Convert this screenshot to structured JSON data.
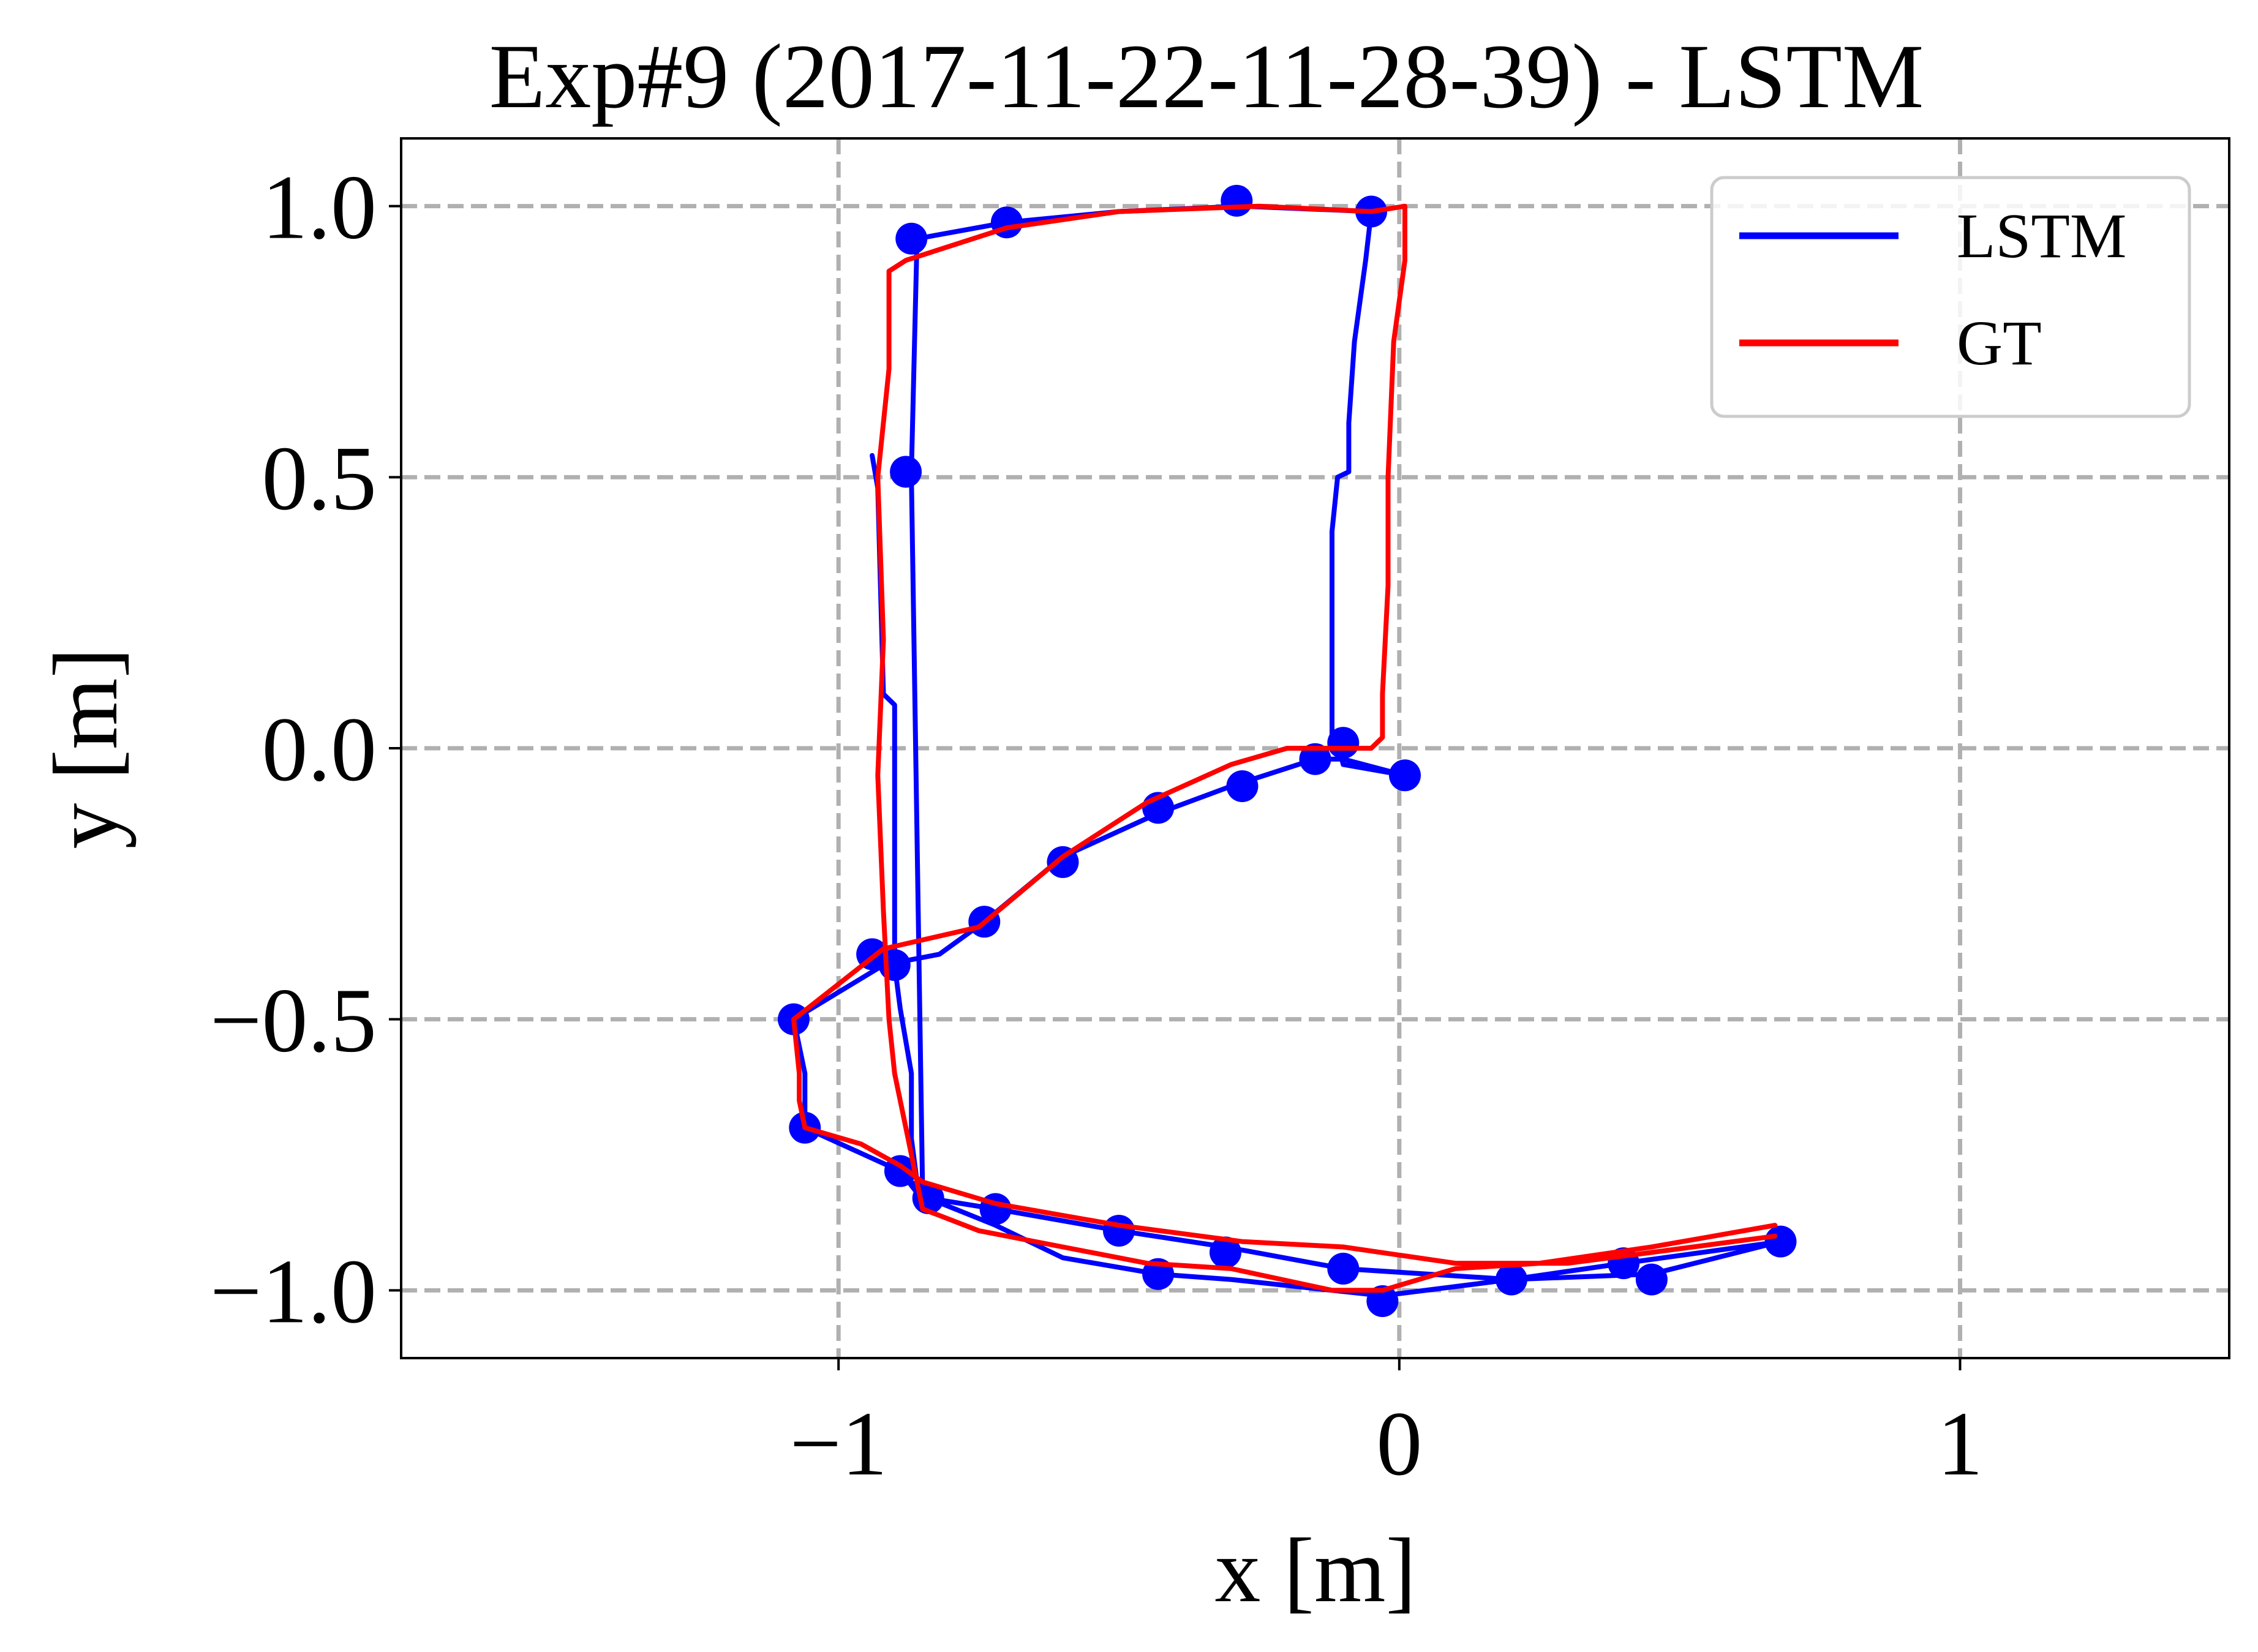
{
  "chart_data": {
    "type": "line",
    "title": "Exp#9 (2017-11-22-11-28-39) - LSTM",
    "xlabel": "x [m]",
    "ylabel": "y [m]",
    "xlim": [
      -1.78,
      1.48
    ],
    "ylim": [
      -1.125,
      1.125
    ],
    "x_ticks": [
      {
        "value": -1,
        "label": "−1"
      },
      {
        "value": 0,
        "label": "0"
      },
      {
        "value": 1,
        "label": "1"
      }
    ],
    "y_ticks": [
      {
        "value": 1.0,
        "label": "1.0"
      },
      {
        "value": 0.5,
        "label": "0.5"
      },
      {
        "value": 0.0,
        "label": "0.0"
      },
      {
        "value": -0.5,
        "label": "−0.5"
      },
      {
        "value": -1.0,
        "label": "−1.0"
      }
    ],
    "grid": true,
    "legend_position": "top-right",
    "series": [
      {
        "name": "LSTM",
        "color": "#0000ff",
        "x": [
          -0.94,
          -0.93,
          -0.92,
          -0.9,
          -0.9,
          -0.9,
          -0.9,
          -0.89,
          -0.87,
          -0.87,
          -0.86,
          -0.85,
          -0.87,
          -0.87,
          -0.86,
          -0.7,
          -0.5,
          -0.28,
          -0.05,
          -0.06,
          -0.08,
          -0.09,
          -0.09,
          -0.11,
          -0.12,
          -0.12,
          -0.12,
          -0.11,
          -0.1,
          0.01,
          -0.1,
          -0.15,
          -0.3,
          -0.43,
          -0.6,
          -0.74,
          -0.82,
          -0.92,
          -1.08,
          -1.06,
          -1.06,
          -0.89,
          -0.86,
          -0.84,
          -0.72,
          -0.5,
          -0.31,
          -0.1,
          0.2,
          0.45,
          0.68,
          0.4,
          0.2,
          -0.03,
          -0.3,
          -0.43,
          -0.6,
          -0.72,
          -0.84,
          -0.89
        ],
        "y": [
          0.54,
          0.48,
          0.1,
          0.08,
          -0.2,
          -0.35,
          -0.4,
          -0.48,
          -0.6,
          -0.72,
          -0.8,
          -0.82,
          0.5,
          0.51,
          0.94,
          0.97,
          0.99,
          1.0,
          0.99,
          0.9,
          0.75,
          0.6,
          0.51,
          0.5,
          0.4,
          0.2,
          0.01,
          0.01,
          -0.03,
          -0.05,
          -0.02,
          -0.02,
          -0.07,
          -0.12,
          -0.2,
          -0.32,
          -0.38,
          -0.4,
          -0.5,
          -0.6,
          -0.7,
          -0.78,
          -0.82,
          -0.83,
          -0.85,
          -0.89,
          -0.92,
          -0.96,
          -0.98,
          -0.97,
          -0.91,
          -0.95,
          -0.98,
          -1.01,
          -0.98,
          -0.97,
          -0.94,
          -0.88,
          -0.83,
          -0.78
        ],
        "markers_x": [
          -0.87,
          -0.7,
          -0.29,
          -0.05,
          -0.88,
          -0.1,
          -0.15,
          0.01,
          -0.28,
          -0.43,
          -0.6,
          -0.74,
          -0.94,
          -0.9,
          -1.08,
          -1.06,
          -0.89,
          -0.84,
          -0.72,
          -0.5,
          -0.31,
          -0.43,
          -0.1,
          -0.03,
          0.2,
          0.4,
          0.45,
          0.68
        ],
        "markers_y": [
          0.94,
          0.97,
          1.01,
          0.99,
          0.51,
          0.01,
          -0.02,
          -0.05,
          -0.07,
          -0.11,
          -0.21,
          -0.32,
          -0.38,
          -0.4,
          -0.5,
          -0.7,
          -0.78,
          -0.83,
          -0.85,
          -0.89,
          -0.93,
          -0.97,
          -0.96,
          -1.02,
          -0.98,
          -0.95,
          -0.98,
          -0.91
        ]
      },
      {
        "name": "GT",
        "color": "#ff0000",
        "x": [
          0.67,
          0.45,
          0.25,
          0.1,
          -0.03,
          -0.12,
          -0.3,
          -0.45,
          -0.6,
          -0.75,
          -0.85,
          -0.86,
          -0.88,
          -0.9,
          -0.91,
          -0.92,
          -0.93,
          -0.92,
          -0.93,
          -0.91,
          -0.91,
          -0.88,
          -0.7,
          -0.5,
          -0.25,
          -0.05,
          0.01,
          0.01,
          -0.01,
          -0.02,
          -0.02,
          -0.03,
          -0.03,
          -0.05,
          -0.2,
          -0.3,
          -0.45,
          -0.6,
          -0.75,
          -0.92,
          -1.08,
          -1.07,
          -1.07,
          -1.06,
          -0.96,
          -0.89,
          -0.85,
          -0.72,
          -0.5,
          -0.28,
          -0.1,
          0.1,
          0.3,
          0.45,
          0.67
        ],
        "y": [
          -0.88,
          -0.92,
          -0.95,
          -0.96,
          -1.0,
          -1.0,
          -0.96,
          -0.95,
          -0.92,
          -0.89,
          -0.85,
          -0.8,
          -0.7,
          -0.6,
          -0.5,
          -0.3,
          -0.05,
          0.2,
          0.5,
          0.7,
          0.88,
          0.9,
          0.96,
          0.99,
          1.0,
          0.99,
          1.0,
          0.9,
          0.75,
          0.5,
          0.3,
          0.1,
          0.02,
          0.0,
          0.0,
          -0.03,
          -0.1,
          -0.2,
          -0.33,
          -0.37,
          -0.5,
          -0.6,
          -0.65,
          -0.7,
          -0.73,
          -0.77,
          -0.8,
          -0.84,
          -0.88,
          -0.91,
          -0.92,
          -0.95,
          -0.95,
          -0.93,
          -0.9
        ]
      }
    ]
  }
}
